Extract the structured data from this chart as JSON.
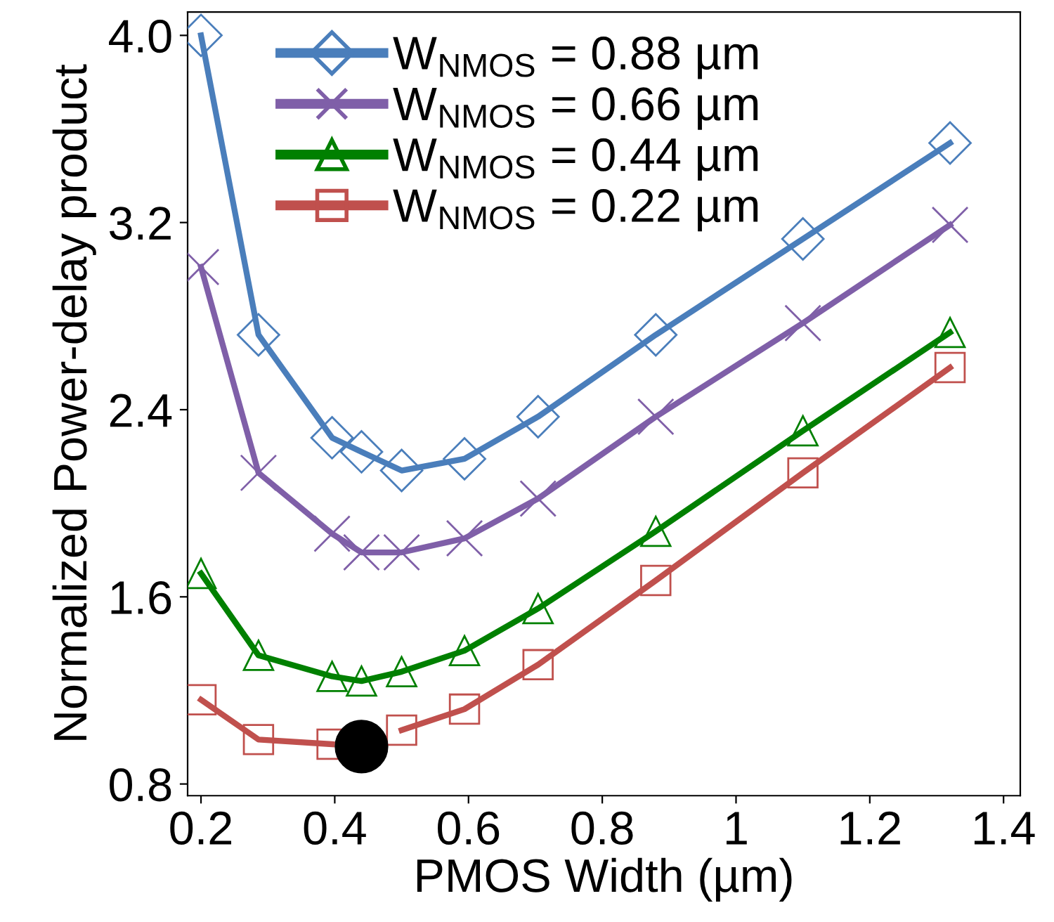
{
  "chart_data": {
    "type": "line",
    "xlabel": "PMOS Width (µm)",
    "ylabel": "Normalized Power-delay product",
    "x": [
      0.2,
      0.286,
      0.396,
      0.44,
      0.5,
      0.594,
      0.704,
      0.88,
      1.1,
      1.32
    ],
    "series": [
      {
        "name": "W$_{NMOS}$ = 0.88 µm",
        "color": "#4a7ebb",
        "marker": "diamond",
        "values": [
          4.0,
          2.72,
          2.28,
          2.22,
          2.14,
          2.19,
          2.37,
          2.72,
          3.13,
          3.54
        ]
      },
      {
        "name": "W$_{NMOS}$ = 0.66 µm",
        "color": "#7f5fa8",
        "marker": "cross",
        "values": [
          3.01,
          2.13,
          1.87,
          1.79,
          1.79,
          1.85,
          2.02,
          2.37,
          2.77,
          3.19
        ]
      },
      {
        "name": "W$_{NMOS}$ = 0.44 µm",
        "color": "#008000",
        "marker": "triangle",
        "values": [
          1.7,
          1.35,
          1.26,
          1.24,
          1.28,
          1.37,
          1.55,
          1.88,
          2.31,
          2.73
        ]
      },
      {
        "name": "W$_{NMOS}$ = 0.22 µm",
        "color": "#c0504d",
        "marker": "square",
        "values": [
          1.16,
          0.99,
          0.97,
          null,
          1.03,
          1.12,
          1.31,
          1.67,
          2.13,
          2.58
        ]
      },
      {
        "type": "scatter",
        "color": "#000000",
        "marker": "circle",
        "x": [
          0.44
        ],
        "values": [
          0.96
        ]
      }
    ],
    "xlim": [
      0.18,
      1.425
    ],
    "ylim": [
      0.75,
      4.1
    ],
    "xticks": [
      {
        "value": 0.2,
        "label": "0.2"
      },
      {
        "value": 0.4,
        "label": "0.4"
      },
      {
        "value": 0.6,
        "label": "0.6"
      },
      {
        "value": 0.8,
        "label": "0.8"
      },
      1,
      {
        "value": 1.2,
        "label": "1.2"
      },
      {
        "value": 1.4,
        "label": "1.4"
      }
    ],
    "yticks": [
      0.8,
      {
        "value": 1.6,
        "label": "1.6"
      },
      {
        "value": 2.4,
        "label": "2.4"
      },
      {
        "value": 3.2,
        "label": "3.2"
      },
      {
        "value": 4.0,
        "label": "4.0"
      }
    ],
    "grid": false,
    "legend": "top",
    "line_style": "solid"
  }
}
